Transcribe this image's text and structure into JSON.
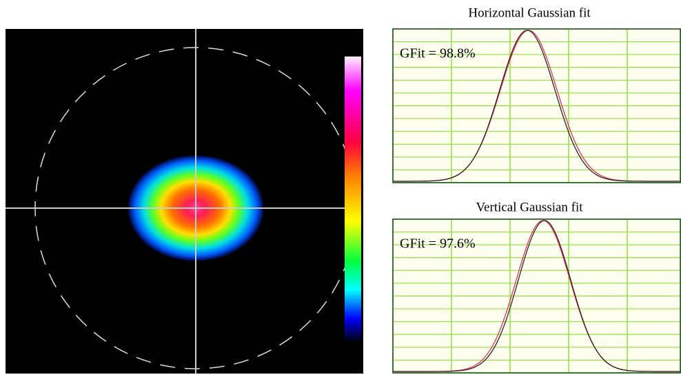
{
  "panels": [
    {
      "title": "Horizontal Gaussian fit",
      "gfit": "GFit = 98.8%"
    },
    {
      "title": "Vertical Gaussian fit",
      "gfit": "GFit = 97.6%"
    }
  ]
}
